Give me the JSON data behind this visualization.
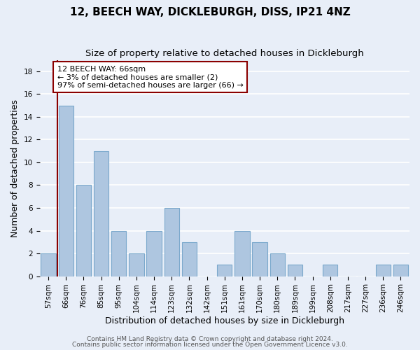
{
  "title": "12, BEECH WAY, DICKLEBURGH, DISS, IP21 4NZ",
  "subtitle": "Size of property relative to detached houses in Dickleburgh",
  "xlabel": "Distribution of detached houses by size in Dickleburgh",
  "ylabel": "Number of detached properties",
  "categories": [
    "57sqm",
    "66sqm",
    "76sqm",
    "85sqm",
    "95sqm",
    "104sqm",
    "114sqm",
    "123sqm",
    "132sqm",
    "142sqm",
    "151sqm",
    "161sqm",
    "170sqm",
    "180sqm",
    "189sqm",
    "199sqm",
    "208sqm",
    "217sqm",
    "227sqm",
    "236sqm",
    "246sqm"
  ],
  "values": [
    2,
    15,
    8,
    11,
    4,
    2,
    4,
    6,
    3,
    0,
    1,
    4,
    3,
    2,
    1,
    0,
    1,
    0,
    0,
    1,
    1
  ],
  "bar_color": "#aec6e0",
  "bar_edge_color": "#7aa8cc",
  "subject_line_index": 1,
  "subject_label": "12 BEECH WAY: 66sqm",
  "annotation_line1": "← 3% of detached houses are smaller (2)",
  "annotation_line2": "97% of semi-detached houses are larger (66) →",
  "annotation_box_color": "#ffffff",
  "annotation_box_edge": "#8b0000",
  "vline_color": "#8b0000",
  "ylim": [
    0,
    19
  ],
  "yticks": [
    0,
    2,
    4,
    6,
    8,
    10,
    12,
    14,
    16,
    18
  ],
  "footer_line1": "Contains HM Land Registry data © Crown copyright and database right 2024.",
  "footer_line2": "Contains public sector information licensed under the Open Government Licence v3.0.",
  "bg_color": "#e8eef8",
  "plot_bg_color": "#e8eef8",
  "grid_color": "#ffffff",
  "title_fontsize": 11,
  "subtitle_fontsize": 9.5,
  "axis_label_fontsize": 9,
  "tick_fontsize": 7.5,
  "footer_fontsize": 6.5,
  "annotation_fontsize": 8
}
